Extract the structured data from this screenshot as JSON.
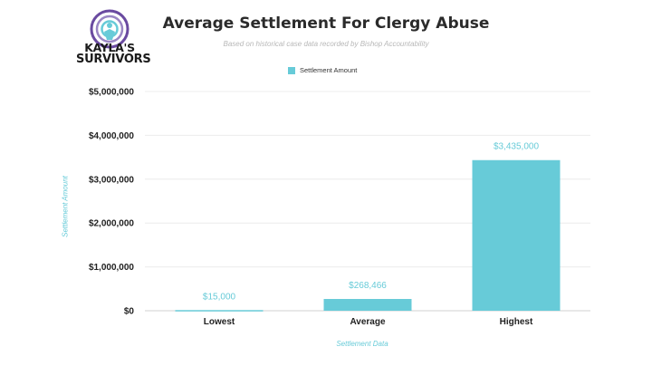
{
  "logo": {
    "line1": "KAYLA'S",
    "line2": "SURVIVORS"
  },
  "chart_data": {
    "type": "bar",
    "title": "Average Settlement For Clergy Abuse",
    "subtitle": "Based on historical case data recorded by Bishop Accountability",
    "xlabel": "Settlement Data",
    "ylabel": "Settlement Amount",
    "categories": [
      "Lowest",
      "Average",
      "Highest"
    ],
    "series": [
      {
        "name": "Settlement Amount",
        "values": [
          15000,
          268466,
          3435000
        ],
        "color": "#67cbd8"
      }
    ],
    "data_labels": [
      "$15,000",
      "$268,466",
      "$3,435,000"
    ],
    "y_ticks": [
      0,
      1000000,
      2000000,
      3000000,
      4000000,
      5000000
    ],
    "y_tick_labels": [
      "$0",
      "$1,000,000",
      "$2,000,000",
      "$3,000,000",
      "$4,000,000",
      "$5,000,000"
    ],
    "ylim": [
      0,
      5000000
    ],
    "grid": true,
    "legend": "top-center"
  }
}
